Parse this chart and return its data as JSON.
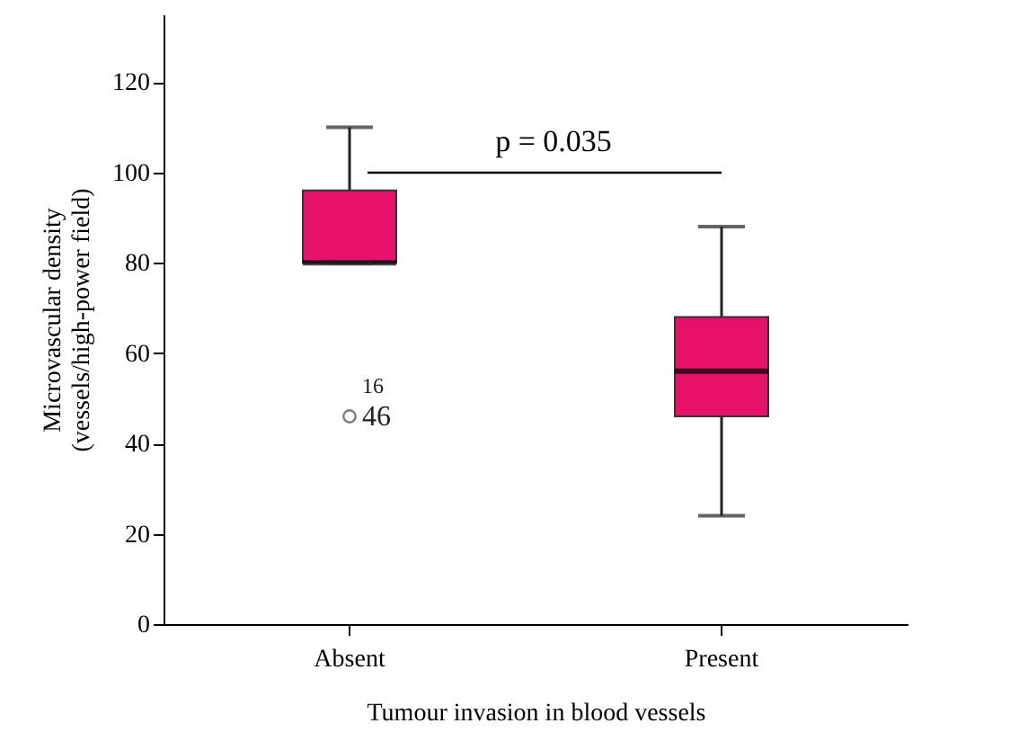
{
  "chart_data": {
    "type": "box",
    "categories": [
      "Absent",
      "Present"
    ],
    "color": "#e6126a",
    "boxes": [
      {
        "low": 80,
        "q1": 80,
        "median": 80,
        "q3": 96,
        "high": 110,
        "outliers": [
          46
        ]
      },
      {
        "low": 24,
        "q1": 46,
        "median": 56,
        "q3": 68,
        "high": 88
      }
    ],
    "xlabel": "Tumour invasion in blood vessels",
    "ylabel": "Microvascular density\n(vessels/high-power field)",
    "ylim": [
      0,
      135
    ],
    "yticks": [
      0,
      20,
      40,
      60,
      80,
      100,
      120
    ],
    "grid": false,
    "annotations": [
      "p = 0.035",
      "46",
      "16"
    ]
  }
}
